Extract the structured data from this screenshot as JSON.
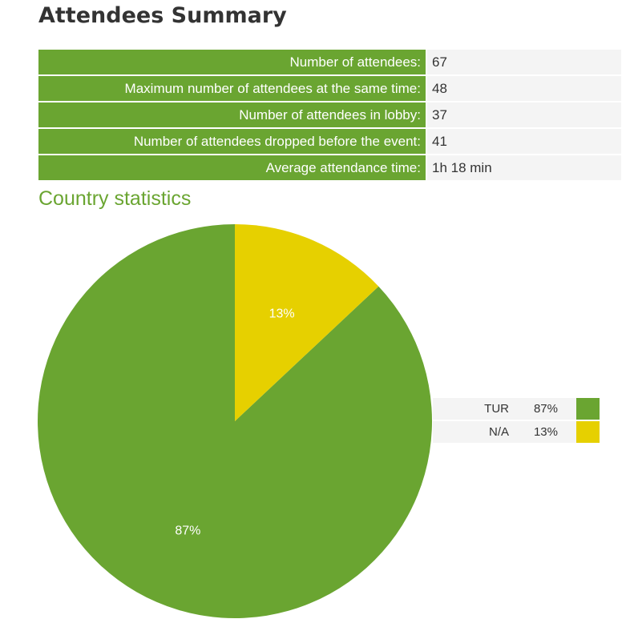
{
  "title": "Attendees Summary",
  "summary": [
    {
      "label": "Number of attendees:",
      "value": "67"
    },
    {
      "label": "Maximum number of attendees at the same time:",
      "value": "48"
    },
    {
      "label": "Number of attendees in lobby:",
      "value": "37"
    },
    {
      "label": "Number of attendees dropped before the event:",
      "value": "41"
    },
    {
      "label": "Average attendance time:",
      "value": "1h 18 min"
    }
  ],
  "section_title": "Country statistics",
  "colors": {
    "accent": "#6aa531",
    "secondary": "#e6d000",
    "cell_bg": "#f4f4f4"
  },
  "chart_data": {
    "type": "pie",
    "title": "Country statistics",
    "slices": [
      {
        "name": "TUR",
        "value": 87,
        "label": "87%",
        "color": "#6aa531"
      },
      {
        "name": "N/A",
        "value": 13,
        "label": "13%",
        "color": "#e6d000"
      }
    ],
    "legend_placement": "right"
  }
}
